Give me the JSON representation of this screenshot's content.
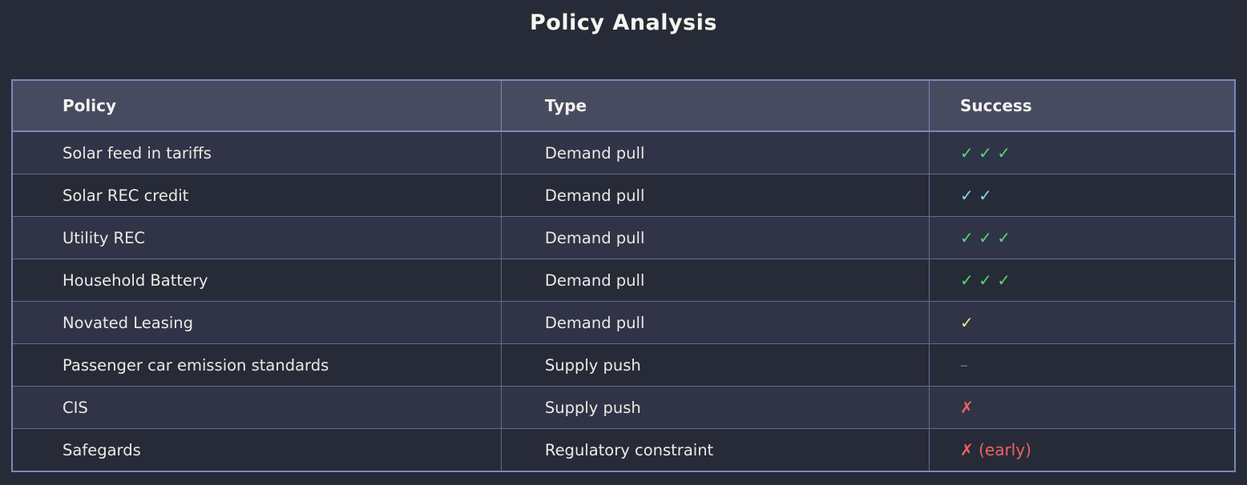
{
  "title": "Policy Analysis",
  "chart_data": {
    "type": "table",
    "title": "Policy Analysis",
    "columns": [
      "Policy",
      "Type",
      "Success"
    ],
    "rows": [
      {
        "policy": "Solar feed in tariffs",
        "type": "Demand pull",
        "success": "✓ ✓ ✓",
        "success_color": "#52db74"
      },
      {
        "policy": "Solar REC credit",
        "type": "Demand pull",
        "success": "✓ ✓",
        "success_color": "#8fd5f2"
      },
      {
        "policy": "Utility REC",
        "type": "Demand pull",
        "success": "✓ ✓ ✓",
        "success_color": "#52db74"
      },
      {
        "policy": "Household Battery",
        "type": "Demand pull",
        "success": "✓ ✓ ✓",
        "success_color": "#52db74"
      },
      {
        "policy": "Novated Leasing",
        "type": "Demand pull",
        "success": "✓",
        "success_color": "#f0e68c"
      },
      {
        "policy": "Passenger car emission standards",
        "type": "Supply push",
        "success": "–",
        "success_color": "#6a739c"
      },
      {
        "policy": "CIS",
        "type": "Supply push",
        "success": "✗",
        "success_color": "#ee6262"
      },
      {
        "policy": "Safegards",
        "type": "Regulatory constraint",
        "success": "✗ (early)",
        "success_color": "#ee6262"
      }
    ],
    "legend_position": "none",
    "grid": true
  },
  "colors": {
    "background": "#272b37",
    "header_background": "#474b60",
    "row_odd_background": "#303446",
    "row_even_background": "#272b37",
    "outer_border": "#7d86ba",
    "grid_line": "#636b96",
    "title_text": "#f6f5ef",
    "header_text": "#f5f3ee",
    "cell_text": "#eceae6",
    "success_green": "#52db74",
    "success_blue": "#8fd5f2",
    "success_yellow": "#f0e68c",
    "failure_red": "#ee6262",
    "neutral_dash": "#6a739c"
  }
}
